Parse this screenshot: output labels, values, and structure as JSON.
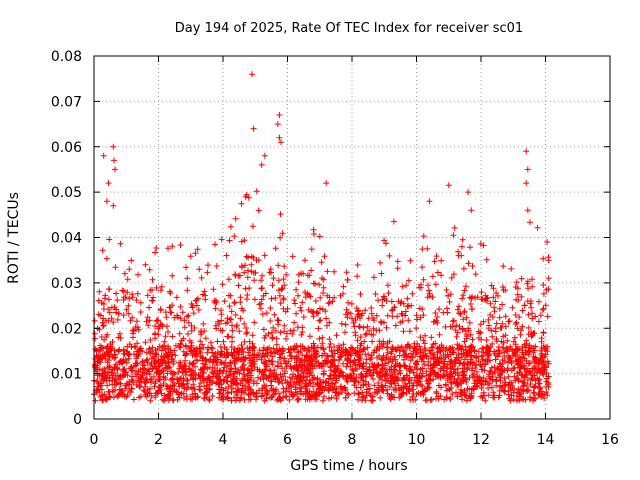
{
  "chart_data": {
    "type": "scatter",
    "title": "Day 194 of 2025, Rate Of TEC Index for receiver sc01",
    "xlabel": "GPS time / hours",
    "ylabel": "ROTI / TECUs",
    "xlim": [
      0,
      16
    ],
    "ylim": [
      0,
      0.08
    ],
    "xticks": [
      0,
      2,
      4,
      6,
      8,
      10,
      12,
      14,
      16
    ],
    "yticks": [
      0,
      0.01,
      0.02,
      0.03,
      0.04,
      0.05,
      0.06,
      0.07,
      0.08
    ],
    "ytick_labels": [
      "0",
      "0.01",
      "0.02",
      "0.03",
      "0.04",
      "0.05",
      "0.06",
      "0.07",
      "0.08"
    ],
    "grid": true,
    "marker": "+",
    "color": "#ff0000",
    "series": [
      {
        "name": "sc01",
        "description": "dense scatter of ROTI values from 0 to 14.1 h, mostly 0.005-0.03",
        "x_range": [
          0,
          14.1
        ],
        "bulk_range": [
          0.003,
          0.03
        ],
        "notable_points": [
          {
            "x": 0.3,
            "y": 0.058
          },
          {
            "x": 0.45,
            "y": 0.052
          },
          {
            "x": 0.4,
            "y": 0.048
          },
          {
            "x": 0.6,
            "y": 0.06
          },
          {
            "x": 0.62,
            "y": 0.057
          },
          {
            "x": 0.65,
            "y": 0.055
          },
          {
            "x": 0.6,
            "y": 0.047
          },
          {
            "x": 4.9,
            "y": 0.076
          },
          {
            "x": 4.95,
            "y": 0.064
          },
          {
            "x": 5.3,
            "y": 0.058
          },
          {
            "x": 5.2,
            "y": 0.056
          },
          {
            "x": 5.75,
            "y": 0.067
          },
          {
            "x": 5.7,
            "y": 0.065
          },
          {
            "x": 5.75,
            "y": 0.062
          },
          {
            "x": 5.8,
            "y": 0.061
          },
          {
            "x": 4.7,
            "y": 0.049
          },
          {
            "x": 7.2,
            "y": 0.052
          },
          {
            "x": 9.3,
            "y": 0.0435
          },
          {
            "x": 10.4,
            "y": 0.048
          },
          {
            "x": 11.0,
            "y": 0.0515
          },
          {
            "x": 11.6,
            "y": 0.05
          },
          {
            "x": 11.7,
            "y": 0.046
          },
          {
            "x": 13.4,
            "y": 0.059
          },
          {
            "x": 13.45,
            "y": 0.055
          },
          {
            "x": 13.4,
            "y": 0.052
          },
          {
            "x": 13.45,
            "y": 0.046
          },
          {
            "x": 14.05,
            "y": 0.039
          },
          {
            "x": 14.1,
            "y": 0.035
          },
          {
            "x": 14.1,
            "y": 0.031
          }
        ]
      }
    ]
  }
}
